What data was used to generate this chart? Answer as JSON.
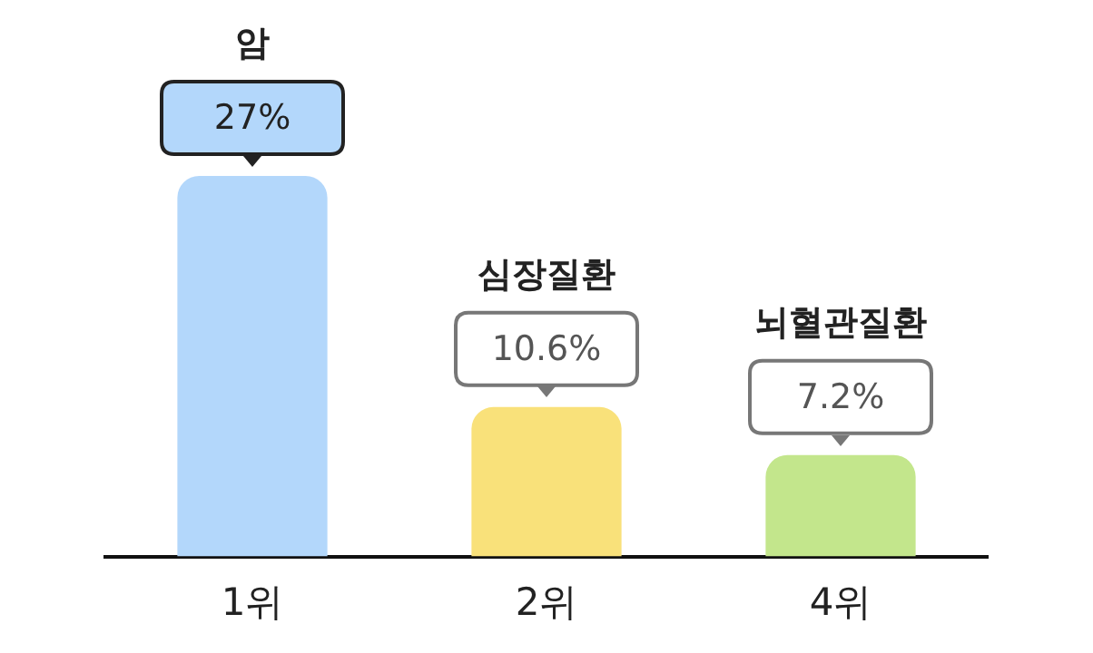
{
  "chart_data": {
    "type": "bar",
    "categories": [
      "1위",
      "2위",
      "4위"
    ],
    "values": [
      27,
      10.6,
      7.2
    ],
    "colors": [
      "#b3d7fb",
      "#f9e17a",
      "#c3e68c"
    ],
    "value_labels": [
      "27%",
      "10.6%",
      "7.2%"
    ],
    "annotations": [
      "암",
      "심장질환",
      "뇌혈관질환"
    ],
    "grid": false,
    "legend": false
  }
}
